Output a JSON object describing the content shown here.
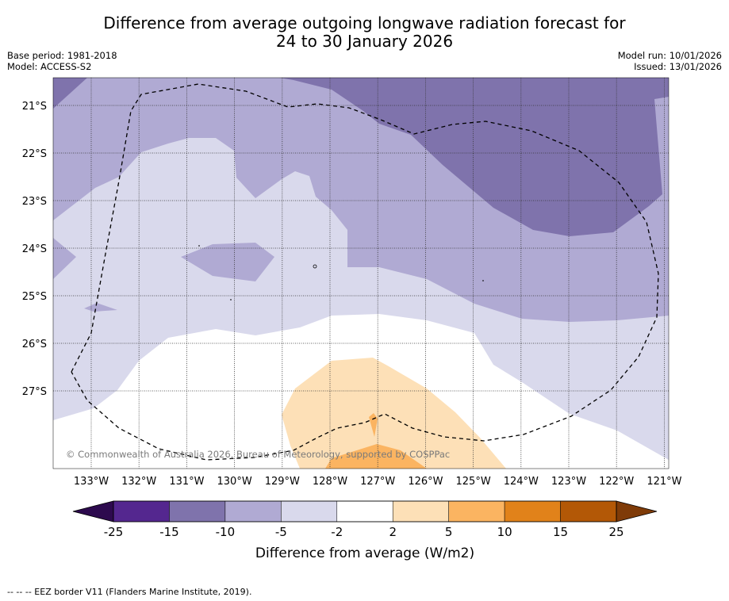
{
  "title": {
    "line1": "Difference from average outgoing longwave radiation forecast for",
    "line2": "24 to 30 January 2026"
  },
  "meta_left": {
    "base_period": "Base period: 1981-2018",
    "model": "Model: ACCESS-S2"
  },
  "meta_right": {
    "model_run": "Model run: 10/01/2026",
    "issued": "Issued: 13/01/2026"
  },
  "map": {
    "lat_labels": [
      "21°S",
      "22°S",
      "23°S",
      "24°S",
      "25°S",
      "26°S",
      "27°S"
    ],
    "lon_labels": [
      "133°W",
      "132°W",
      "131°W",
      "130°W",
      "129°W",
      "128°W",
      "127°W",
      "126°W",
      "125°W",
      "124°W",
      "123°W",
      "122°W",
      "121°W"
    ],
    "copyright": "© Commonwealth of Australia 2026, Bureau of Meteorology, supported by COSPPac"
  },
  "colorbar": {
    "ticks": [
      "-25",
      "-15",
      "-10",
      "-5",
      "-2",
      "2",
      "5",
      "10",
      "15",
      "25"
    ],
    "label": "Difference from average (W/m2)",
    "colors": {
      "under": "#2d0a4e",
      "bins": [
        "#54278f",
        "#7f73ac",
        "#b0aad3",
        "#d9d9ec",
        "#ffffff",
        "#fde0b7",
        "#fbb461",
        "#e1821a",
        "#b35806"
      ],
      "over": "#7f3b08"
    }
  },
  "footer": {
    "legend": "--  --  -- EEZ border V11 (Flanders Marine Institute, 2019)."
  }
}
